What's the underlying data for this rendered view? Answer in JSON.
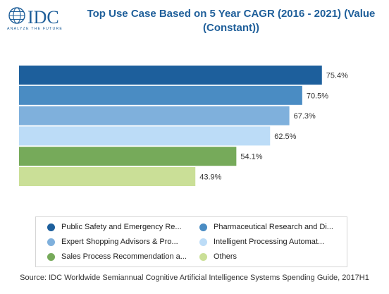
{
  "logo": {
    "brand": "IDC",
    "tagline": "ANALYZE THE FUTURE"
  },
  "colors": {
    "brand": "#1f5f9a",
    "series": [
      "#1d5f9c",
      "#4a8cc3",
      "#7fb0dc",
      "#bcdcf7",
      "#76aa5a",
      "#cadf97"
    ]
  },
  "chart_data": {
    "type": "bar",
    "orientation": "horizontal",
    "title": "Top Use Case Based on 5 Year CAGR (2016 - 2021) (Value (Constant))",
    "categories": [
      "Public Safety and Emergency Re...",
      "Pharmaceutical Research and Di...",
      "Expert Shopping Advisors & Pro...",
      "Intelligent Processing Automat...",
      "Sales Process Recommendation a...",
      "Others"
    ],
    "values": [
      75.4,
      70.5,
      67.3,
      62.5,
      54.1,
      43.9
    ],
    "value_labels": [
      "75.4%",
      "70.5%",
      "67.3%",
      "62.5%",
      "54.1%",
      "43.9%"
    ],
    "unit": "%",
    "xlim": [
      0,
      100
    ],
    "grid": false,
    "legend": "bottom"
  },
  "source": "Source: IDC Worldwide Semiannual Cognitive Artificial Intelligence Systems Spending Guide, 2017H1"
}
